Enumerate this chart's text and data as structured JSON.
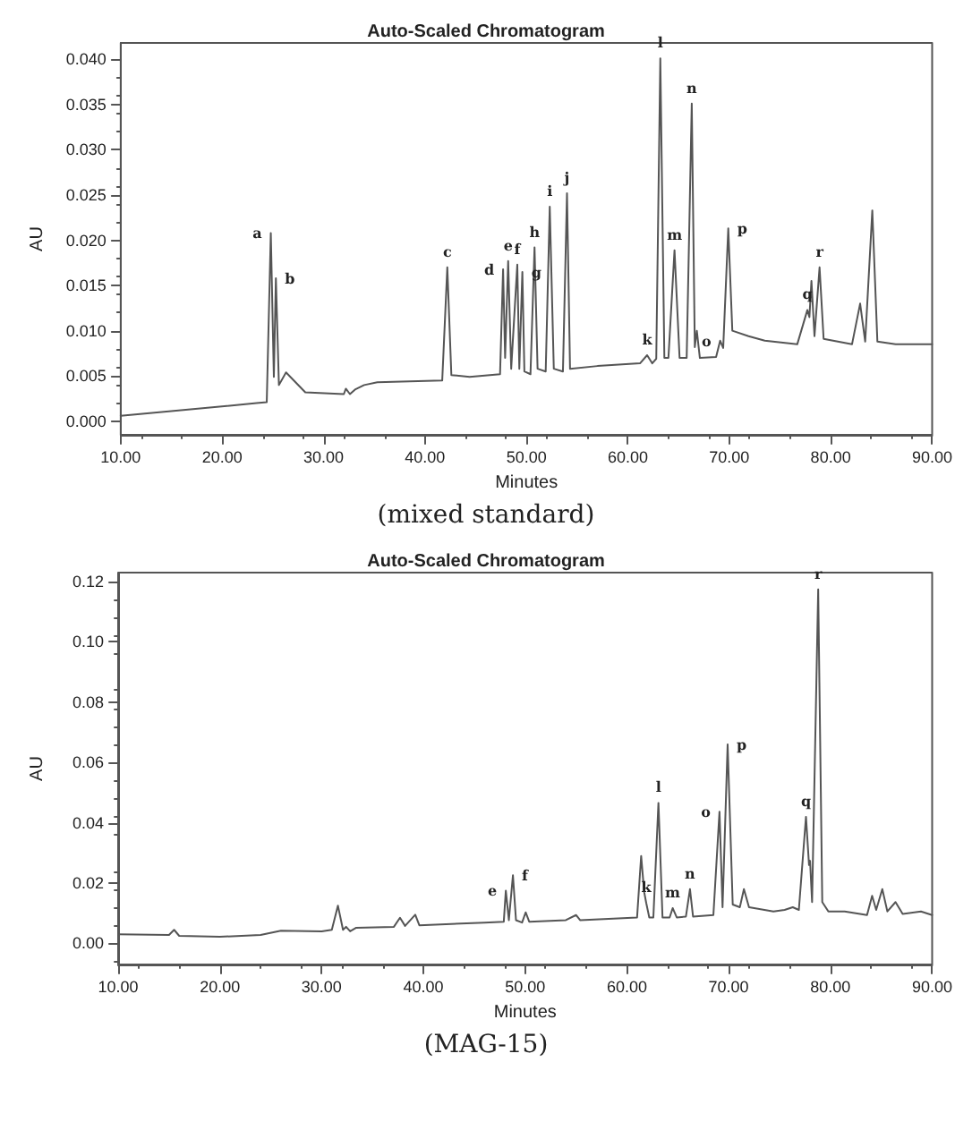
{
  "chart_data": [
    {
      "type": "line",
      "title": "Auto-Scaled Chromatogram",
      "xlabel": "Minutes",
      "ylabel": "AU",
      "color": "#555555",
      "xlim": [
        10,
        90
      ],
      "ylim": [
        -0.0015,
        0.0418
      ],
      "xticks": [
        {
          "value": 10,
          "label": "10.00"
        },
        {
          "value": 20,
          "label": "20.00"
        },
        {
          "value": 30,
          "label": "30.00"
        },
        {
          "value": 40,
          "label": "40.00"
        },
        {
          "value": 50,
          "label": "50.00"
        },
        {
          "value": 60,
          "label": "60.00"
        },
        {
          "value": 70,
          "label": "70.00"
        },
        {
          "value": 80,
          "label": "80.00"
        },
        {
          "value": 90,
          "label": "90.00"
        }
      ],
      "yticks": [
        {
          "value": 0,
          "label": "0.000"
        },
        {
          "value": 0.005,
          "label": "0.005"
        },
        {
          "value": 0.01,
          "label": "0.010"
        },
        {
          "value": 0.015,
          "label": "0.015"
        },
        {
          "value": 0.02,
          "label": "0.020"
        },
        {
          "value": 0.025,
          "label": "0.025"
        },
        {
          "value": 0.03,
          "label": "0.030"
        },
        {
          "value": 0.035,
          "label": "0.035"
        },
        {
          "value": 0.04,
          "label": "0.040"
        }
      ],
      "x": [
        10,
        23.4,
        24.4,
        24.8,
        25.1,
        25.3,
        25.6,
        26.3,
        28.2,
        32,
        32.2,
        32.6,
        33.1,
        34,
        35.3,
        41.7,
        42.2,
        42.6,
        44.4,
        47.4,
        47.7,
        47.9,
        48.2,
        48.5,
        49.1,
        49.3,
        49.6,
        49.8,
        50.4,
        50.8,
        51.1,
        51.9,
        52.3,
        52.7,
        53.6,
        54,
        54.3,
        57,
        61.2,
        61.9,
        62.4,
        62.8,
        63.2,
        63.6,
        64,
        64.6,
        65.1,
        65.8,
        66.3,
        66.6,
        66.8,
        67.1,
        68.7,
        69.1,
        69.4,
        69.9,
        70.3,
        71.9,
        73.5,
        76.7,
        77.7,
        77.9,
        78.1,
        78.4,
        78.9,
        79.3,
        82.1,
        82.9,
        83.4,
        84.1,
        84.6,
        86.4,
        90
      ],
      "values": [
        0.0006,
        0.002,
        0.0021,
        0.0208,
        0.0049,
        0.0158,
        0.004,
        0.0054,
        0.0032,
        0.003,
        0.0036,
        0.003,
        0.0035,
        0.004,
        0.0043,
        0.0045,
        0.017,
        0.0051,
        0.0049,
        0.0052,
        0.0168,
        0.007,
        0.0177,
        0.0058,
        0.0173,
        0.0058,
        0.0165,
        0.0055,
        0.0052,
        0.0192,
        0.0058,
        0.0055,
        0.0237,
        0.0058,
        0.0055,
        0.0252,
        0.0058,
        0.0061,
        0.0064,
        0.0073,
        0.0064,
        0.0069,
        0.0401,
        0.007,
        0.007,
        0.0189,
        0.007,
        0.007,
        0.0351,
        0.0082,
        0.01,
        0.007,
        0.0071,
        0.0089,
        0.0081,
        0.0213,
        0.01,
        0.0094,
        0.0089,
        0.0085,
        0.0123,
        0.0115,
        0.0155,
        0.0094,
        0.017,
        0.0091,
        0.0085,
        0.013,
        0.0088,
        0.0233,
        0.0088,
        0.0085,
        0.0085
      ],
      "annotations": [
        {
          "text": "a",
          "x": 24.8,
          "y": 0.0208
        },
        {
          "text": "b",
          "x": 25.3,
          "y": 0.0158
        },
        {
          "text": "c",
          "x": 42.2,
          "y": 0.017
        },
        {
          "text": "d",
          "x": 47.7,
          "y": 0.0168
        },
        {
          "text": "e",
          "x": 48.2,
          "y": 0.0177
        },
        {
          "text": "f",
          "x": 49.1,
          "y": 0.0173
        },
        {
          "text": "g",
          "x": 49.6,
          "y": 0.0165
        },
        {
          "text": "h",
          "x": 50.8,
          "y": 0.0192
        },
        {
          "text": "i",
          "x": 52.3,
          "y": 0.0237
        },
        {
          "text": "j",
          "x": 54,
          "y": 0.0252
        },
        {
          "text": "k",
          "x": 61.9,
          "y": 0.0073
        },
        {
          "text": "l",
          "x": 63.2,
          "y": 0.0401
        },
        {
          "text": "m",
          "x": 64.6,
          "y": 0.0189
        },
        {
          "text": "n",
          "x": 66.3,
          "y": 0.0351
        },
        {
          "text": "o",
          "x": 69.1,
          "y": 0.0089
        },
        {
          "text": "p",
          "x": 69.9,
          "y": 0.0213
        },
        {
          "text": "q",
          "x": 77.7,
          "y": 0.0123
        },
        {
          "text": "r",
          "x": 78.9,
          "y": 0.017
        },
        "(mixed standard)"
      ]
    },
    {
      "type": "line",
      "title": "Auto-Scaled Chromatogram",
      "xlabel": "Minutes",
      "ylabel": "AU",
      "color": "#555555",
      "xlim": [
        10,
        90
      ],
      "ylim": [
        -0.007,
        0.123
      ],
      "xticks": [
        {
          "value": 10,
          "label": "10.00"
        },
        {
          "value": 20,
          "label": "20.00"
        },
        {
          "value": 30,
          "label": "30.00"
        },
        {
          "value": 40,
          "label": "40.00"
        },
        {
          "value": 50,
          "label": "50.00"
        },
        {
          "value": 60,
          "label": "60.00"
        },
        {
          "value": 70,
          "label": "70.00"
        },
        {
          "value": 80,
          "label": "80.00"
        },
        {
          "value": 90,
          "label": "90.00"
        }
      ],
      "yticks": [
        {
          "value": 0,
          "label": "0.00"
        },
        {
          "value": 0.02,
          "label": "0.02"
        },
        {
          "value": 0.04,
          "label": "0.04"
        },
        {
          "value": 0.06,
          "label": "0.06"
        },
        {
          "value": 0.08,
          "label": "0.08"
        },
        {
          "value": 0.1,
          "label": "0.10"
        },
        {
          "value": 0.12,
          "label": "0.12"
        }
      ],
      "x": [
        10,
        15,
        15.5,
        16,
        20,
        24,
        26,
        30,
        31,
        31.6,
        32.1,
        32.4,
        32.8,
        33.4,
        37.1,
        37.7,
        38.2,
        39.2,
        39.6,
        46,
        47.9,
        48.1,
        48.4,
        48.8,
        49.1,
        49.7,
        50.05,
        50.4,
        54,
        55,
        55.4,
        61,
        61.4,
        61.7,
        61.9,
        62.2,
        62.6,
        63.1,
        63.5,
        64.2,
        64.5,
        64.9,
        65.8,
        66.2,
        66.5,
        68.5,
        69.1,
        69.4,
        69.9,
        70.4,
        71.1,
        71.5,
        72,
        74.4,
        75.5,
        76.3,
        76.9,
        77.6,
        77.9,
        78,
        78.2,
        78.8,
        79.2,
        79.8,
        81.4,
        83.6,
        84.1,
        84.5,
        85.1,
        85.6,
        86.4,
        87.1,
        88.9,
        90
      ],
      "values": [
        0.003,
        0.0028,
        0.0045,
        0.0025,
        0.0022,
        0.0028,
        0.0042,
        0.004,
        0.0045,
        0.0125,
        0.0045,
        0.0055,
        0.004,
        0.0052,
        0.0055,
        0.0085,
        0.0058,
        0.0095,
        0.006,
        0.0069,
        0.0072,
        0.0175,
        0.0077,
        0.0226,
        0.0077,
        0.0069,
        0.0103,
        0.0072,
        0.0077,
        0.0094,
        0.0077,
        0.0086,
        0.029,
        0.017,
        0.0134,
        0.0086,
        0.0086,
        0.0466,
        0.0086,
        0.0086,
        0.0117,
        0.0086,
        0.0089,
        0.018,
        0.0089,
        0.0094,
        0.0437,
        0.012,
        0.066,
        0.0129,
        0.012,
        0.018,
        0.012,
        0.0106,
        0.0111,
        0.012,
        0.0111,
        0.042,
        0.026,
        0.0274,
        0.0137,
        0.1174,
        0.0137,
        0.0106,
        0.0106,
        0.0094,
        0.0158,
        0.0111,
        0.018,
        0.0106,
        0.0137,
        0.0098,
        0.0106,
        0.0094
      ],
      "annotations": [
        {
          "text": "e",
          "x": 48.1,
          "y": 0.0175
        },
        {
          "text": "f",
          "x": 48.8,
          "y": 0.0226
        },
        {
          "text": "k",
          "x": 61.9,
          "y": 0.0134
        },
        {
          "text": "l",
          "x": 63.1,
          "y": 0.0466
        },
        {
          "text": "m",
          "x": 64.5,
          "y": 0.0117
        },
        {
          "text": "n",
          "x": 66.2,
          "y": 0.018
        },
        {
          "text": "o",
          "x": 69.1,
          "y": 0.0437
        },
        {
          "text": "p",
          "x": 69.9,
          "y": 0.066
        },
        {
          "text": "q",
          "x": 77.6,
          "y": 0.042
        },
        {
          "text": "r",
          "x": 78.8,
          "y": 0.1174
        },
        "(MAG-15)"
      ]
    }
  ]
}
